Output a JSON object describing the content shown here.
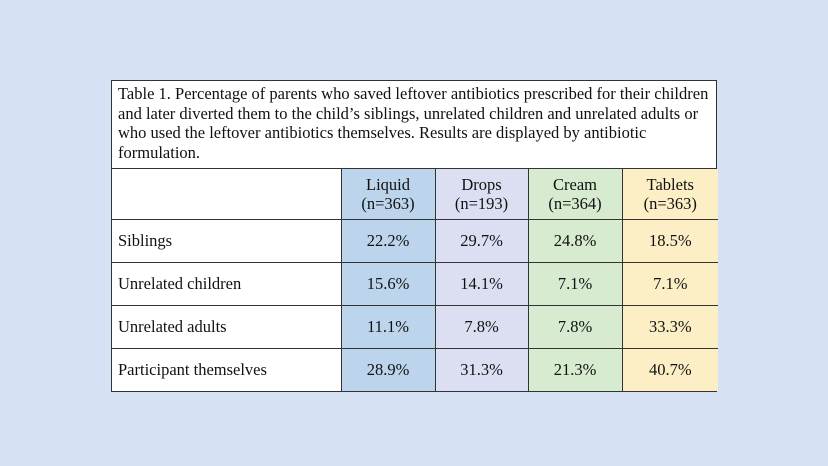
{
  "caption": "Table 1. Percentage of parents who saved leftover antibiotics prescribed for their children and later diverted them to the child’s siblings, unrelated children and unrelated adults or who used the leftover antibiotics themselves. Results are displayed by antibiotic formulation.",
  "chart_data": {
    "type": "table",
    "columns": [
      {
        "name": "Liquid",
        "n": "(n=363)"
      },
      {
        "name": "Drops",
        "n": "(n=193)"
      },
      {
        "name": "Cream",
        "n": "(n=364)"
      },
      {
        "name": "Tablets",
        "n": "(n=363)"
      }
    ],
    "rows": [
      {
        "label": "Siblings",
        "values": [
          "22.2%",
          "29.7%",
          "24.8%",
          "18.5%"
        ]
      },
      {
        "label": "Unrelated children",
        "values": [
          "15.6%",
          "14.1%",
          "7.1%",
          "7.1%"
        ]
      },
      {
        "label": "Unrelated adults",
        "values": [
          "11.1%",
          "7.8%",
          "7.8%",
          "33.3%"
        ]
      },
      {
        "label": "Participant themselves",
        "values": [
          "28.9%",
          "31.3%",
          "21.3%",
          "40.7%"
        ]
      }
    ]
  },
  "colors": {
    "background": "#d6e1f3",
    "liquid": "#bcd5ec",
    "drops": "#dcdff2",
    "cream": "#d6ebcf",
    "tablets": "#fcefc5"
  }
}
